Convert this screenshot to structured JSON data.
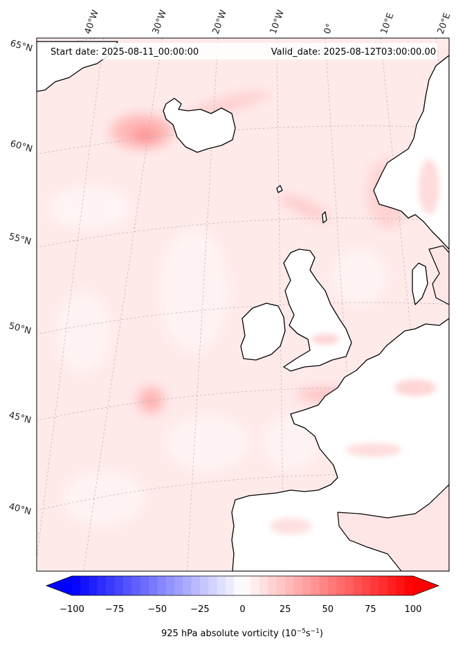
{
  "header": {
    "start_date": "Start date: 2025-08-11_00:00:00",
    "valid_date": "Valid_date: 2025-08-12T03:00:00.00"
  },
  "longitude_labels": [
    "40°W",
    "30°W",
    "20°W",
    "10°W",
    "0°",
    "10°E",
    "20°E"
  ],
  "latitude_labels": [
    "65°N",
    "60°N",
    "55°N",
    "50°N",
    "45°N",
    "40°N"
  ],
  "colorbar": {
    "ticks": [
      "−100",
      "−75",
      "−50",
      "−25",
      "0",
      "25",
      "50",
      "75",
      "100"
    ],
    "label_main": "925 hPa absolute vorticity (10",
    "label_exp1": "−5",
    "label_mid": "s",
    "label_exp2": "−1",
    "label_end": ")",
    "vmin": -100,
    "vmax": 100,
    "levels": 40,
    "colormap": "bwr",
    "extend": "both"
  },
  "colors": {
    "ocean_base": "#ffe9e9",
    "coastline": "#000000",
    "gridline": "#b0b0b0",
    "neg_max": "#0000ff",
    "zero": "#ffffff",
    "pos_max": "#ff0000"
  }
}
